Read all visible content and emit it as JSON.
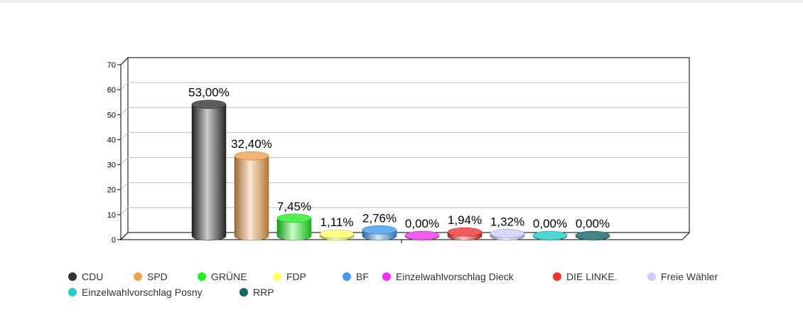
{
  "chart_data": {
    "type": "bar",
    "title": "",
    "xlabel": "",
    "ylabel": "",
    "ylim": [
      0,
      70
    ],
    "yticks": [
      "0",
      "10",
      "20",
      "30",
      "40",
      "50",
      "60",
      "70"
    ],
    "grid": true,
    "legend_position": "bottom",
    "categories": [
      "CDU",
      "SPD",
      "GRÜNE",
      "FDP",
      "BF",
      "Einzelwahlvorschlag Dieck",
      "DIE LINKE.",
      "Freie Wähler",
      "Einzelwahlvorschlag Posny",
      "RRP"
    ],
    "values": [
      53.0,
      32.4,
      7.45,
      1.11,
      2.76,
      0.0,
      1.94,
      1.32,
      0.0,
      0.0
    ],
    "data_labels": [
      "53,00%",
      "32,40%",
      "7,45%",
      "1,11%",
      "2,76%",
      "0,00%",
      "1,94%",
      "1,32%",
      "0,00%",
      "0,00%"
    ],
    "colors": [
      "#333333",
      "#f0a050",
      "#22ee22",
      "#ffff66",
      "#4499ee",
      "#ee33ee",
      "#ee3333",
      "#ccccff",
      "#22cccc",
      "#116666"
    ]
  }
}
